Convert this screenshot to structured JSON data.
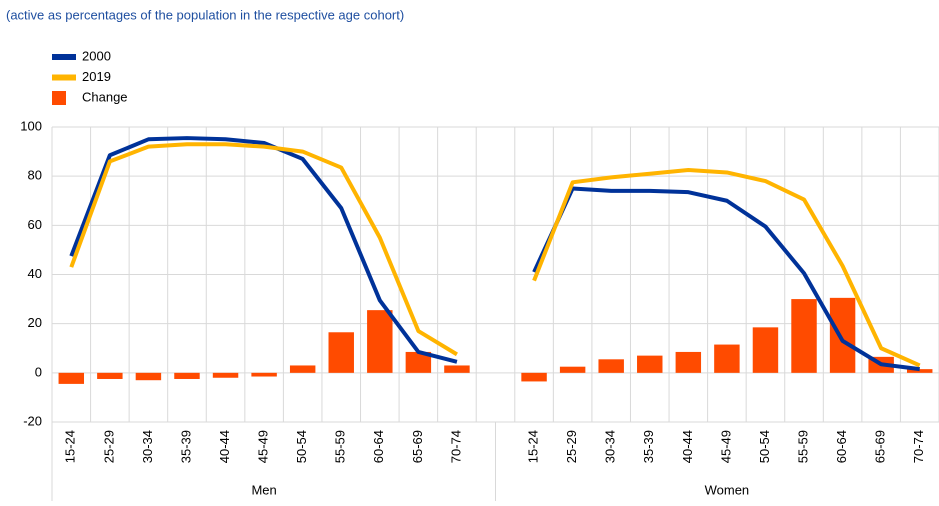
{
  "chart_data": {
    "type": "combo",
    "subtitle": "(active as percentages of the population in the respective age cohort)",
    "categories": [
      "15-24",
      "25-29",
      "30-34",
      "35-39",
      "40-44",
      "45-49",
      "50-54",
      "55-59",
      "60-64",
      "65-69",
      "70-74",
      null,
      "15-24",
      "25-29",
      "30-34",
      "35-39",
      "40-44",
      "45-49",
      "50-54",
      "55-59",
      "60-64",
      "65-69",
      "70-74"
    ],
    "groups": [
      "Men",
      "Women"
    ],
    "series": [
      {
        "name": "2000",
        "type": "line",
        "color": "#003299",
        "values": [
          47.5,
          88.5,
          95,
          95.5,
          95,
          93.5,
          87,
          67,
          29.5,
          8.5,
          4.5,
          null,
          41,
          75,
          74,
          74,
          73.5,
          70,
          59.5,
          40.5,
          13,
          3.5,
          1.5
        ]
      },
      {
        "name": "2019",
        "type": "line",
        "color": "#ffb400",
        "values": [
          43,
          86,
          92,
          93,
          93,
          92,
          90,
          83.5,
          55,
          17,
          7.5,
          null,
          37.5,
          77.5,
          79.5,
          81,
          82.5,
          81.5,
          78,
          70.5,
          43.5,
          10,
          3
        ]
      },
      {
        "name": "Change",
        "type": "bar",
        "color": "#ff4b00",
        "values": [
          -4.5,
          -2.5,
          -3,
          -2.5,
          -2,
          -1.5,
          3,
          16.5,
          25.5,
          8.5,
          3,
          null,
          -3.5,
          2.5,
          5.5,
          7,
          8.5,
          11.5,
          18.5,
          30,
          30.5,
          6.5,
          1.5
        ]
      }
    ],
    "ylim": [
      -20,
      100
    ],
    "yticks": [
      -20,
      0,
      20,
      40,
      60,
      80,
      100
    ],
    "grid": true,
    "legend": "top-left"
  }
}
